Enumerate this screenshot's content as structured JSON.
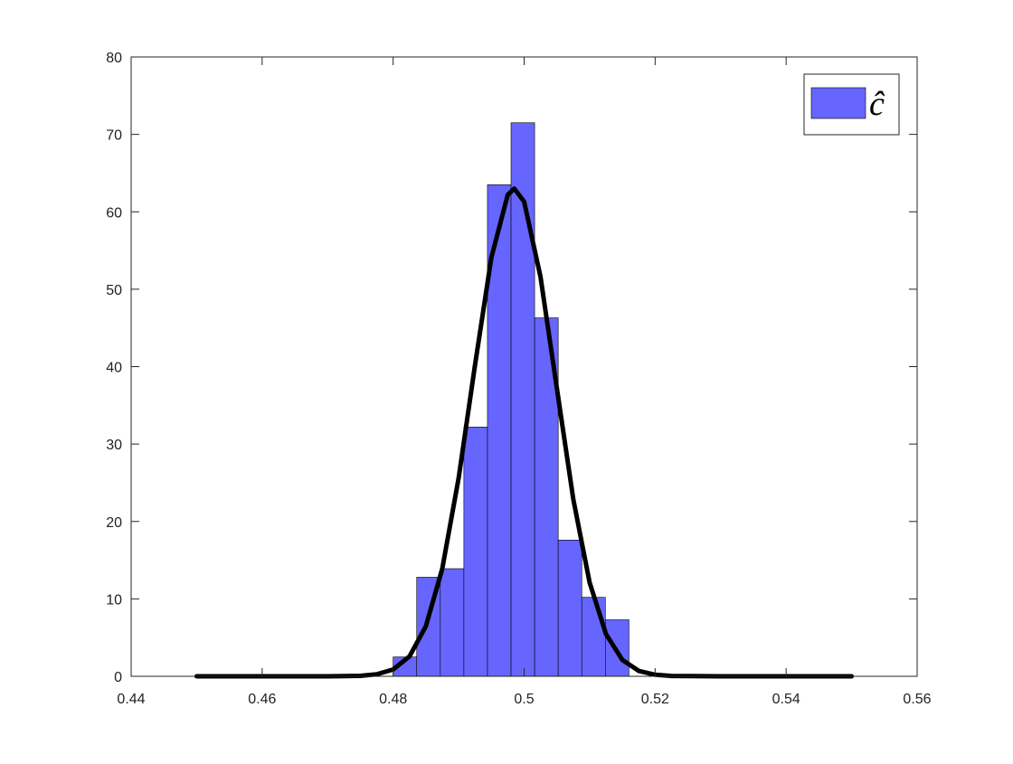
{
  "chart_data": {
    "type": "histogram",
    "bins": [
      0.48,
      0.4836,
      0.4872,
      0.4908,
      0.4944,
      0.498,
      0.5016,
      0.5052,
      0.5088,
      0.5124,
      0.516
    ],
    "series": [
      {
        "name": "ĉ",
        "color": "#6666ff",
        "values": [
          2.5,
          12.8,
          13.9,
          32.2,
          63.5,
          71.5,
          46.3,
          17.6,
          10.2,
          7.3
        ]
      }
    ],
    "curve": {
      "type": "line",
      "color": "#000000",
      "x": [
        0.45,
        0.46,
        0.47,
        0.475,
        0.4775,
        0.48,
        0.4825,
        0.485,
        0.4875,
        0.49,
        0.4925,
        0.495,
        0.4975,
        0.4985,
        0.5,
        0.5025,
        0.505,
        0.5075,
        0.51,
        0.5125,
        0.515,
        0.5175,
        0.52,
        0.5225,
        0.53,
        0.54,
        0.55
      ],
      "values": [
        0,
        0,
        0,
        0.06,
        0.26,
        0.88,
        2.58,
        6.48,
        13.9,
        25.6,
        40.2,
        54.1,
        62.2,
        63,
        61.3,
        51.6,
        37.2,
        22.9,
        12.1,
        5.45,
        2.11,
        0.7,
        0.2,
        0.05,
        0,
        0,
        0
      ]
    },
    "xlim": [
      0.44,
      0.56
    ],
    "ylim": [
      0,
      80
    ],
    "xticks": [
      0.44,
      0.46,
      0.48,
      0.5,
      0.52,
      0.54,
      0.56
    ],
    "yticks": [
      0,
      10,
      20,
      30,
      40,
      50,
      60,
      70,
      80
    ],
    "grid": false,
    "legend": "northeast"
  }
}
